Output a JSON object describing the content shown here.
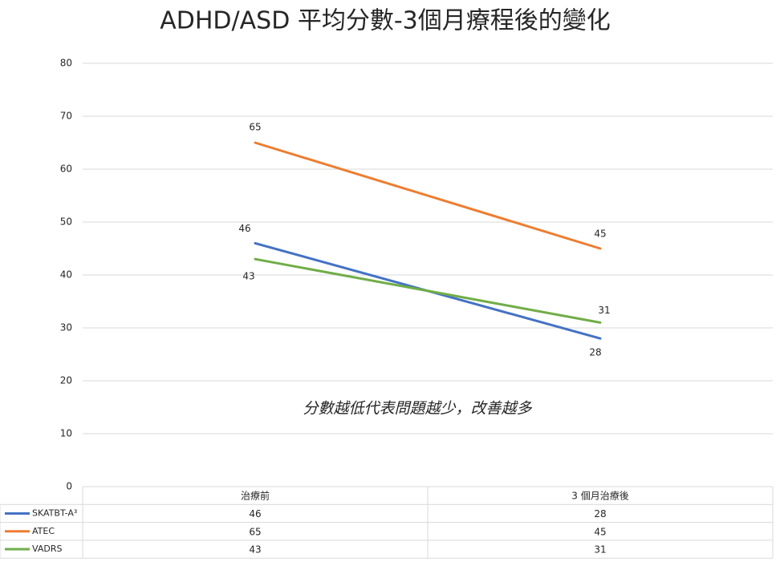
{
  "chart_data": {
    "type": "line",
    "title": "ADHD/ASD 平均分數-3個月療程後的變化",
    "annotation": "分數越低代表問題越少，改善越多",
    "categories": [
      "治療前",
      "3 個月治療後"
    ],
    "series": [
      {
        "name": "SKATBT-A³",
        "color": "#4472c4",
        "values": [
          46,
          28
        ]
      },
      {
        "name": "ATEC",
        "color": "#ed7d31",
        "values": [
          65,
          45
        ]
      },
      {
        "name": "VADRS",
        "color": "#70ad47",
        "values": [
          43,
          31
        ]
      }
    ],
    "ylim": [
      0,
      80
    ],
    "yticks": [
      0,
      10,
      20,
      30,
      40,
      50,
      60,
      70,
      80
    ],
    "grid": true,
    "legend": "table"
  }
}
